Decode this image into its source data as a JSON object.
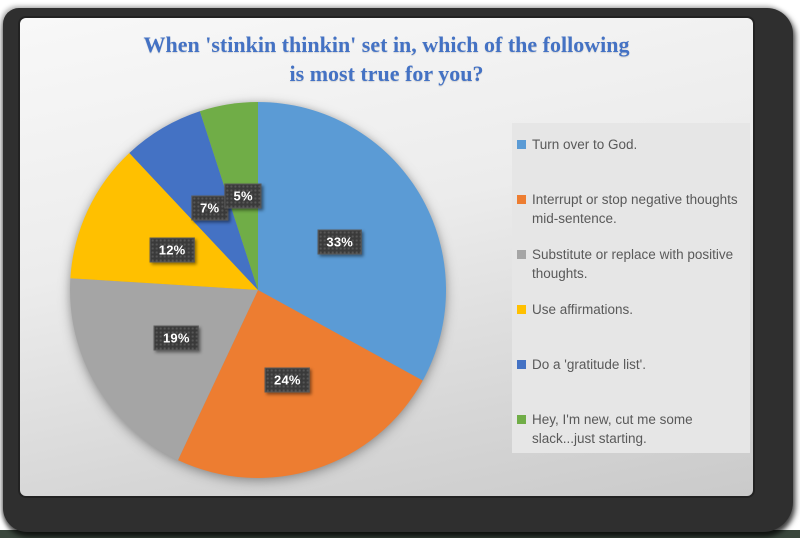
{
  "title": {
    "line1": "When 'stinkin thinkin' set in, which of the following",
    "line2": "is most true for you?"
  },
  "theme": {
    "title_color": "#4472c4",
    "frame_color": "#2f2f2f",
    "legend_panel_bg": "#e6e6e6",
    "legend_text_color": "#595959",
    "data_label_bg": "#3a3a3a",
    "data_label_text": "#ffffff",
    "bottom_strip_color": "#3a463c"
  },
  "chart_data": {
    "type": "pie",
    "title": "When 'stinkin thinkin' set in, which of the following is most true for you?",
    "start_angle_deg": 0,
    "direction": "clockwise",
    "legend_position": "right",
    "data_label_position": "inside-mid",
    "slices": [
      {
        "label": "Turn over to God.",
        "value": 33,
        "pct_label": "33%",
        "color": "#5b9bd5",
        "legend_lines": [
          "Turn over to God."
        ]
      },
      {
        "label": "Interrupt or stop negative thoughts mid-sentence.",
        "value": 24,
        "pct_label": "24%",
        "color": "#ed7d31",
        "legend_lines": [
          "Interrupt or stop negative thoughts",
          "mid-sentence."
        ]
      },
      {
        "label": "Substitute or replace with positive thoughts.",
        "value": 19,
        "pct_label": "19%",
        "color": "#a5a5a5",
        "legend_lines": [
          "Substitute or replace with positive",
          "thoughts."
        ]
      },
      {
        "label": "Use affirmations.",
        "value": 12,
        "pct_label": "12%",
        "color": "#ffc000",
        "legend_lines": [
          "Use affirmations."
        ]
      },
      {
        "label": "Do a 'gratitude list'.",
        "value": 7,
        "pct_label": "7%",
        "color": "#4472c4",
        "legend_lines": [
          "Do a 'gratitude list'."
        ]
      },
      {
        "label": "Hey, I'm new, cut me some slack...just starting.",
        "value": 5,
        "pct_label": "5%",
        "color": "#70ad47",
        "legend_lines": [
          "Hey, I'm new, cut me some",
          "slack...just starting."
        ]
      }
    ]
  }
}
